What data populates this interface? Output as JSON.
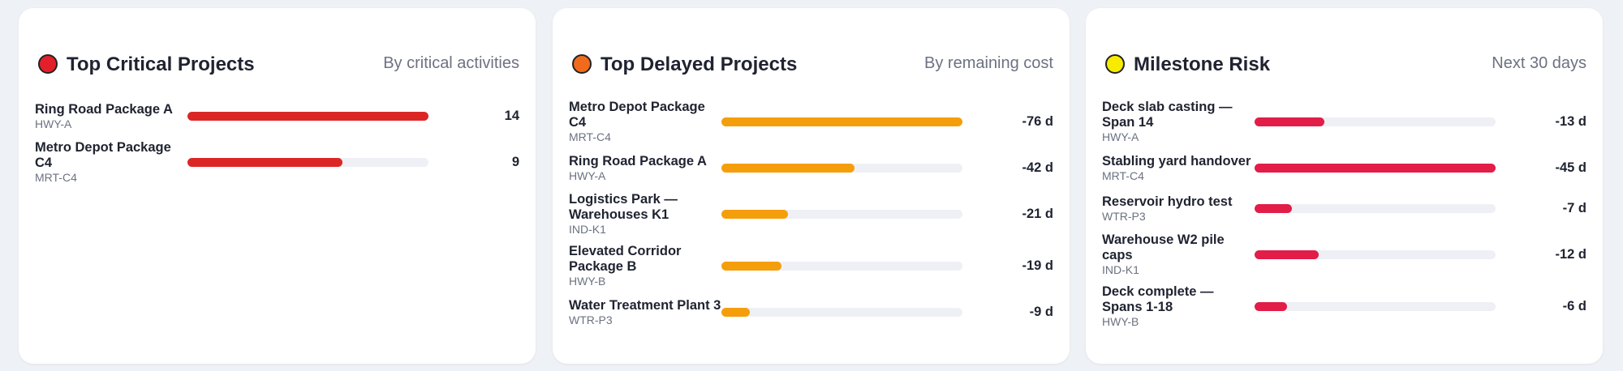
{
  "panels": [
    {
      "title": "Top Critical Projects",
      "subtitle": "By critical activities",
      "dot_color": "#e3202a",
      "bar_color": "#dc2626",
      "items": [
        {
          "name": "Ring Road Package A",
          "code": "HWY-A",
          "value": 14
        },
        {
          "name": "Metro Depot Package C4",
          "code": "MRT-C4",
          "value": 9
        }
      ]
    },
    {
      "title": "Top Delayed Projects",
      "subtitle": "By remaining cost",
      "dot_color": "#f26b1d",
      "bar_color": "#f59e0b",
      "items": [
        {
          "name": "Metro Depot Package C4",
          "code": "MRT-C4",
          "value": -76,
          "value_label": "-76 d"
        },
        {
          "name": "Ring Road Package A",
          "code": "HWY-A",
          "value": -42,
          "value_label": "-42 d"
        },
        {
          "name": "Logistics Park — Warehouses K1",
          "code": "IND-K1",
          "value": -21,
          "value_label": "-21 d"
        },
        {
          "name": "Elevated Corridor Package B",
          "code": "HWY-B",
          "value": -19,
          "value_label": "-19 d"
        },
        {
          "name": "Water Treatment Plant 3",
          "code": "WTR-P3",
          "value": -9,
          "value_label": "-9 d"
        }
      ]
    },
    {
      "title": "Milestone Risk",
      "subtitle": "Next 30 days",
      "dot_color": "#f7ec00",
      "bar_color": "#e11d48",
      "items": [
        {
          "name": "Deck slab casting — Span 14",
          "code": "HWY-A",
          "value": -13,
          "value_label": "-13 d"
        },
        {
          "name": "Stabling yard handover",
          "code": "MRT-C4",
          "value": -45,
          "value_label": "-45 d"
        },
        {
          "name": "Reservoir hydro test",
          "code": "WTR-P3",
          "value": -7,
          "value_label": "-7 d"
        },
        {
          "name": "Warehouse W2 pile caps",
          "code": "IND-K1",
          "value": -12,
          "value_label": "-12 d"
        },
        {
          "name": "Deck complete — Spans 1-18",
          "code": "HWY-B",
          "value": -6,
          "value_label": "-6 d"
        }
      ]
    }
  ]
}
